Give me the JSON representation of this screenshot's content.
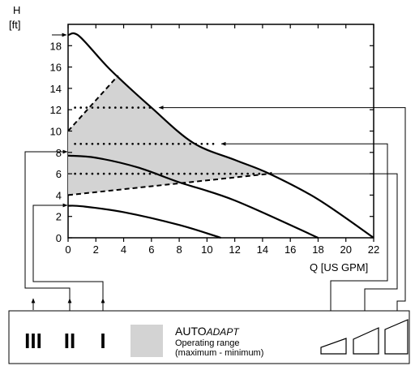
{
  "chart_data": {
    "type": "line",
    "ylabel": "H",
    "yunit": "[ft]",
    "xlabel": "Q [US GPM]",
    "xlim": [
      0,
      22
    ],
    "ylim": [
      0,
      20
    ],
    "x_ticks": [
      "0",
      "2",
      "4",
      "6",
      "8",
      "10",
      "12",
      "14",
      "16",
      "18",
      "20",
      "22"
    ],
    "y_ticks": [
      "0",
      "2",
      "4",
      "6",
      "8",
      "10",
      "12",
      "14",
      "16",
      "18"
    ],
    "series": [
      {
        "values": [
          [
            0,
            19.0
          ],
          [
            0.8,
            18.9
          ],
          [
            3.0,
            15.8
          ],
          [
            6.0,
            12.2
          ],
          [
            9.0,
            8.9
          ],
          [
            12.0,
            7.3
          ],
          [
            14.5,
            6.0
          ],
          [
            18.0,
            3.6
          ],
          [
            22.0,
            0.0
          ]
        ]
      },
      {
        "values": [
          [
            0,
            7.7
          ],
          [
            2.0,
            7.5
          ],
          [
            5.0,
            6.6
          ],
          [
            8.0,
            5.2
          ],
          [
            12.0,
            3.5
          ],
          [
            18.0,
            0.0
          ]
        ]
      },
      {
        "values": [
          [
            0,
            3.0
          ],
          [
            1.0,
            2.95
          ],
          [
            4.0,
            2.4
          ],
          [
            8.0,
            1.2
          ],
          [
            11.0,
            0.0
          ]
        ]
      }
    ],
    "operating_range": [
      [
        0,
        10.0
      ],
      [
        3.6,
        15.2
      ],
      [
        6.0,
        12.2
      ],
      [
        9.0,
        8.9
      ],
      [
        12.0,
        7.3
      ],
      [
        14.5,
        6.0
      ],
      [
        0,
        4.0
      ]
    ],
    "constant_pressure_lines": [
      {
        "y": 12.2,
        "x_start": 0.5,
        "x_end": 6.2
      },
      {
        "y": 8.8,
        "x_start": 0.5,
        "x_end": 10.8
      },
      {
        "y": 6.0,
        "x_start": 0.5,
        "x_end": 14.0
      }
    ],
    "proportional_pressure_lines": [
      {
        "x1": 0,
        "y1": 10.0,
        "x2": 3.6,
        "y2": 15.2
      },
      {
        "x1": 0,
        "y1": 4.0,
        "x2": 14.5,
        "y2": 6.0
      }
    ]
  },
  "legend": {
    "modes": [
      "III",
      "II",
      "I"
    ],
    "title_main": "AUTO",
    "title_italic": "ADAPT",
    "line1": "Operating range",
    "line2": "(maximum - minimum)"
  },
  "colors": {
    "range_fill": "#d3d3d3",
    "line": "#000000"
  }
}
